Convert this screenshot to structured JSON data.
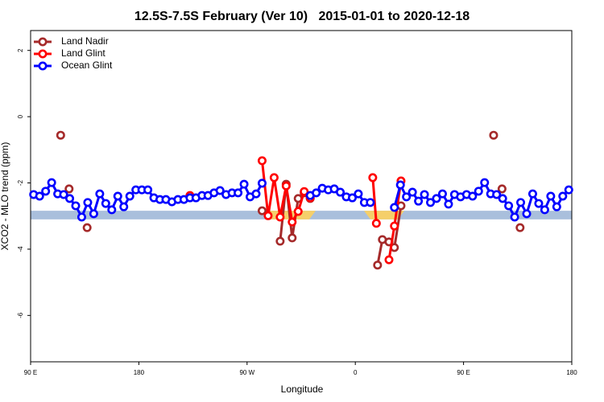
{
  "chart_data": {
    "type": "line",
    "title": "12.5S-7.5S February (Ver 10)   2015-01-01 to 2020-12-18",
    "x_label": "Longitude",
    "y_label": "XCO2 - MLO trend (ppm)",
    "xlim": [
      90,
      540
    ],
    "ylim": [
      -7.4,
      2.6
    ],
    "xticks": [
      {
        "value": 90,
        "label": "90 E"
      },
      180,
      {
        "value": 270,
        "label": "90 W"
      },
      {
        "value": 360,
        "label": "0"
      },
      {
        "value": 450,
        "label": "90 E"
      },
      {
        "value": 540,
        "label": "180"
      }
    ],
    "yticks": [
      2,
      0,
      -2,
      -4,
      -6
    ],
    "band": [
      -3.1,
      -2.84
    ],
    "band_color": "#a9bfdc",
    "legend": "top-left",
    "series": [
      {
        "name": "Land Nadir",
        "color": "#a52a2a",
        "x": [
          115,
          null,
          122,
          null,
          137,
          null,
          282.5,
          null,
          297.5,
          302.5,
          307.5,
          312.5,
          317.5,
          322.5,
          null,
          378.5,
          382.5,
          388,
          392.5,
          398,
          null,
          475,
          null,
          482,
          null,
          497
        ],
        "values": [
          -0.56,
          null,
          -2.18,
          null,
          -3.35,
          null,
          -2.84,
          null,
          -3.76,
          -2.04,
          -3.66,
          -2.47,
          -2.3,
          -2.47,
          null,
          -4.48,
          -3.71,
          -3.78,
          -3.95,
          -2.69,
          null,
          -0.56,
          null,
          -2.18,
          null,
          -3.35
        ]
      },
      {
        "name": "Land Glint",
        "color": "#ff0000",
        "x": [
          222.5,
          null,
          282.5,
          287.5,
          292.5,
          297.5,
          302.5,
          307.5,
          312.5,
          317.5,
          322.5,
          null,
          374.5,
          377.5,
          null,
          388,
          392.5,
          398
        ],
        "values": [
          -2.38,
          null,
          -1.33,
          -2.99,
          -1.84,
          -3.03,
          -2.09,
          -3.18,
          -2.86,
          -2.26,
          -2.45,
          null,
          -1.84,
          -3.22,
          null,
          -4.32,
          -3.3,
          -1.94
        ]
      },
      {
        "name": "Ocean Glint",
        "color": "#0000ff",
        "x": [
          92.5,
          97.5,
          102.5,
          107.5,
          112.5,
          117.5,
          122.5,
          127.5,
          132.5,
          137.5,
          142.5,
          147.5,
          152.5,
          157.5,
          162.5,
          167.5,
          172.5,
          177.5,
          182.5,
          187.5,
          192.5,
          197.5,
          202.5,
          207.5,
          212.5,
          217.5,
          222.5,
          227.5,
          232.5,
          237.5,
          242.5,
          247.5,
          252.5,
          257.5,
          262.5,
          267.5,
          272.5,
          277.5,
          282.5,
          null,
          322.5,
          327.5,
          332.5,
          337.5,
          342.5,
          347.5,
          352.5,
          357.5,
          362.5,
          367.5,
          372.5,
          null,
          392.5,
          397.5,
          402.5,
          407.5,
          412.5,
          417.5,
          422.5,
          427.5,
          432.5,
          437.5,
          442.5,
          447.5,
          452.5,
          457.5,
          462.5,
          467.5,
          472.5,
          477.5,
          482.5,
          487.5,
          492.5,
          497.5,
          502.5,
          507.5,
          512.5,
          517.5,
          522.5,
          527.5,
          532.5,
          537.5
        ],
        "values": [
          -2.35,
          -2.4,
          -2.25,
          -1.99,
          -2.33,
          -2.35,
          -2.47,
          -2.69,
          -3.03,
          -2.59,
          -2.93,
          -2.33,
          -2.62,
          -2.81,
          -2.4,
          -2.72,
          -2.4,
          -2.21,
          -2.21,
          -2.21,
          -2.45,
          -2.5,
          -2.5,
          -2.57,
          -2.5,
          -2.5,
          -2.45,
          -2.45,
          -2.38,
          -2.38,
          -2.3,
          -2.23,
          -2.35,
          -2.3,
          -2.3,
          -2.04,
          -2.42,
          -2.33,
          -2.01,
          null,
          -2.38,
          -2.3,
          -2.16,
          -2.21,
          -2.18,
          -2.28,
          -2.42,
          -2.45,
          -2.33,
          -2.59,
          -2.59,
          null,
          -2.74,
          -2.06,
          -2.42,
          -2.28,
          -2.55,
          -2.35,
          -2.59,
          -2.47,
          -2.33,
          -2.64,
          -2.35,
          -2.42,
          -2.35,
          -2.4,
          -2.25,
          -1.99,
          -2.33,
          -2.35,
          -2.47,
          -2.69,
          -3.03,
          -2.59,
          -2.93,
          -2.33,
          -2.62,
          -2.81,
          -2.4,
          -2.72,
          -2.4,
          -2.21
        ]
      }
    ]
  }
}
